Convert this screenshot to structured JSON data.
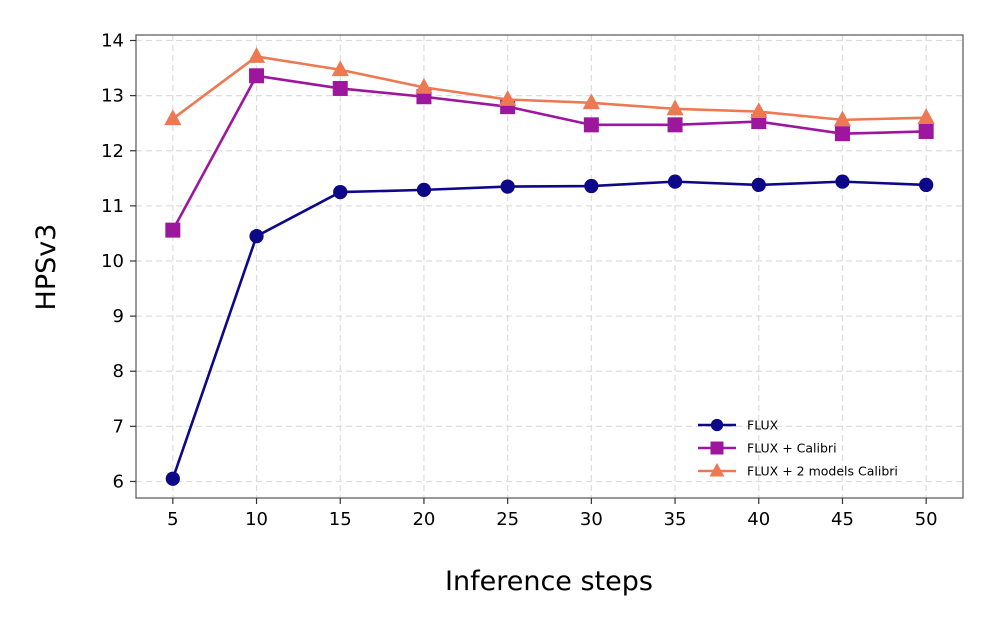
{
  "chart_data": {
    "type": "line",
    "title": "",
    "xlabel": "Inference steps",
    "ylabel": "HPSv3",
    "x": [
      5,
      10,
      15,
      20,
      25,
      30,
      35,
      40,
      45,
      50
    ],
    "xticks": [
      "5",
      "10",
      "15",
      "20",
      "25",
      "30",
      "35",
      "40",
      "45",
      "50"
    ],
    "yticks": [
      "6",
      "7",
      "8",
      "9",
      "10",
      "11",
      "12",
      "13",
      "14"
    ],
    "xlim": [
      2.8,
      52.2
    ],
    "ylim": [
      5.7,
      14.1
    ],
    "grid": true,
    "legend_placement": "lower-right",
    "series": [
      {
        "name": "FLUX",
        "color": "#0d0887",
        "marker": "circle",
        "values": [
          6.05,
          10.45,
          11.25,
          11.29,
          11.35,
          11.36,
          11.44,
          11.38,
          11.44,
          11.38
        ]
      },
      {
        "name": "FLUX + Calibri",
        "color": "#9c179e",
        "marker": "square",
        "values": [
          10.56,
          13.36,
          13.13,
          12.98,
          12.8,
          12.47,
          12.47,
          12.53,
          12.31,
          12.35
        ]
      },
      {
        "name": "FLUX + 2 models Calibri",
        "color": "#ed7953",
        "marker": "triangle",
        "values": [
          12.58,
          13.71,
          13.47,
          13.15,
          12.93,
          12.87,
          12.76,
          12.71,
          12.56,
          12.6
        ]
      }
    ]
  }
}
